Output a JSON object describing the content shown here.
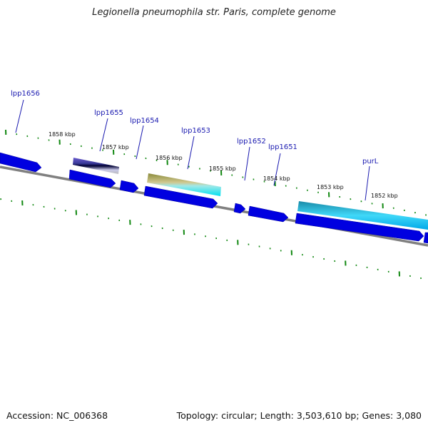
{
  "title": "Legionella pneumophila str. Paris, complete genome",
  "footer": {
    "accession": "Accession: NC_006368",
    "summary": "Topology: circular; Length: 3,503,610 bp; Genes: 3,080"
  },
  "colors": {
    "forward_gene": "#0000e0",
    "backbone": "#808080",
    "tick": "#118811",
    "label_line": "#1a1ab0"
  },
  "gene_labels": [
    "lpp1656",
    "lpp1655",
    "lpp1654",
    "lpp1653",
    "lpp1652",
    "lpp1651",
    "purL"
  ],
  "kbp_labels": [
    "1858 kbp",
    "1857 kbp",
    "1856 kbp",
    "1855 kbp",
    "1854 kbp",
    "1853 kbp",
    "1852 kbp"
  ]
}
